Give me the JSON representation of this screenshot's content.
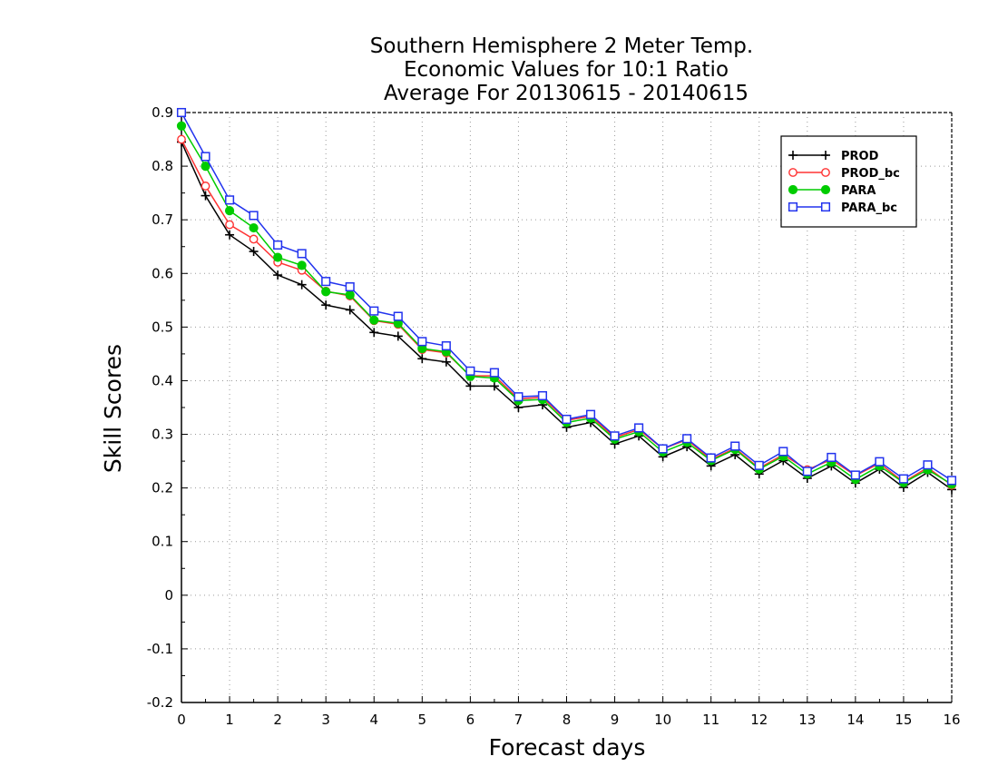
{
  "chart_data": {
    "type": "line",
    "title": [
      "Southern Hemisphere 2 Meter Temp.",
      "Economic Values for 10:1 Ratio",
      "Average For 20130615 - 20140615"
    ],
    "xlabel": "Forecast days",
    "ylabel": "Skill Scores",
    "xlim": [
      0,
      16
    ],
    "ylim": [
      -0.2,
      0.9
    ],
    "xticks": [
      "0",
      "1",
      "2",
      "3",
      "4",
      "5",
      "6",
      "7",
      "8",
      "9",
      "10",
      "11",
      "12",
      "13",
      "14",
      "15",
      "16"
    ],
    "yticks": [
      "-0.2",
      "-0.1",
      "0",
      "0.1",
      "0.2",
      "0.3",
      "0.4",
      "0.5",
      "0.6",
      "0.7",
      "0.8",
      "0.9"
    ],
    "grid": true,
    "legend_position": "top-right",
    "x": [
      0,
      0.5,
      1,
      1.5,
      2,
      2.5,
      3,
      3.5,
      4,
      4.5,
      5,
      5.5,
      6,
      6.5,
      7,
      7.5,
      8,
      8.5,
      9,
      9.5,
      10,
      10.5,
      11,
      11.5,
      12,
      12.5,
      13,
      13.5,
      14,
      14.5,
      15,
      15.5,
      16
    ],
    "series": [
      {
        "name": "PROD",
        "color": "#000000",
        "marker": "plus",
        "values": [
          0.845,
          0.745,
          0.672,
          0.641,
          0.597,
          0.579,
          0.541,
          0.532,
          0.49,
          0.483,
          0.441,
          0.435,
          0.39,
          0.39,
          0.35,
          0.355,
          0.313,
          0.322,
          0.282,
          0.297,
          0.258,
          0.277,
          0.241,
          0.262,
          0.226,
          0.251,
          0.218,
          0.241,
          0.209,
          0.235,
          0.201,
          0.229,
          0.197
        ]
      },
      {
        "name": "PROD_bc",
        "color": "#ff3333",
        "marker": "open-circle",
        "values": [
          0.85,
          0.763,
          0.691,
          0.664,
          0.621,
          0.606,
          0.567,
          0.558,
          0.512,
          0.505,
          0.458,
          0.452,
          0.409,
          0.409,
          0.366,
          0.369,
          0.326,
          0.334,
          0.294,
          0.309,
          0.273,
          0.29,
          0.253,
          0.274,
          0.237,
          0.262,
          0.234,
          0.253,
          0.223,
          0.246,
          0.211,
          0.238,
          0.205
        ]
      },
      {
        "name": "PARA",
        "color": "#00cc00",
        "marker": "filled-circle",
        "values": [
          0.875,
          0.8,
          0.717,
          0.685,
          0.63,
          0.615,
          0.566,
          0.56,
          0.513,
          0.507,
          0.46,
          0.454,
          0.408,
          0.405,
          0.363,
          0.365,
          0.322,
          0.33,
          0.291,
          0.305,
          0.267,
          0.285,
          0.251,
          0.272,
          0.235,
          0.259,
          0.226,
          0.248,
          0.216,
          0.241,
          0.21,
          0.234,
          0.207
        ]
      },
      {
        "name": "PARA_bc",
        "color": "#2233ee",
        "marker": "open-square",
        "values": [
          0.9,
          0.818,
          0.737,
          0.708,
          0.653,
          0.637,
          0.585,
          0.575,
          0.53,
          0.52,
          0.473,
          0.465,
          0.418,
          0.415,
          0.37,
          0.372,
          0.328,
          0.337,
          0.297,
          0.312,
          0.273,
          0.292,
          0.256,
          0.278,
          0.242,
          0.268,
          0.231,
          0.257,
          0.224,
          0.249,
          0.217,
          0.243,
          0.214
        ]
      }
    ]
  }
}
